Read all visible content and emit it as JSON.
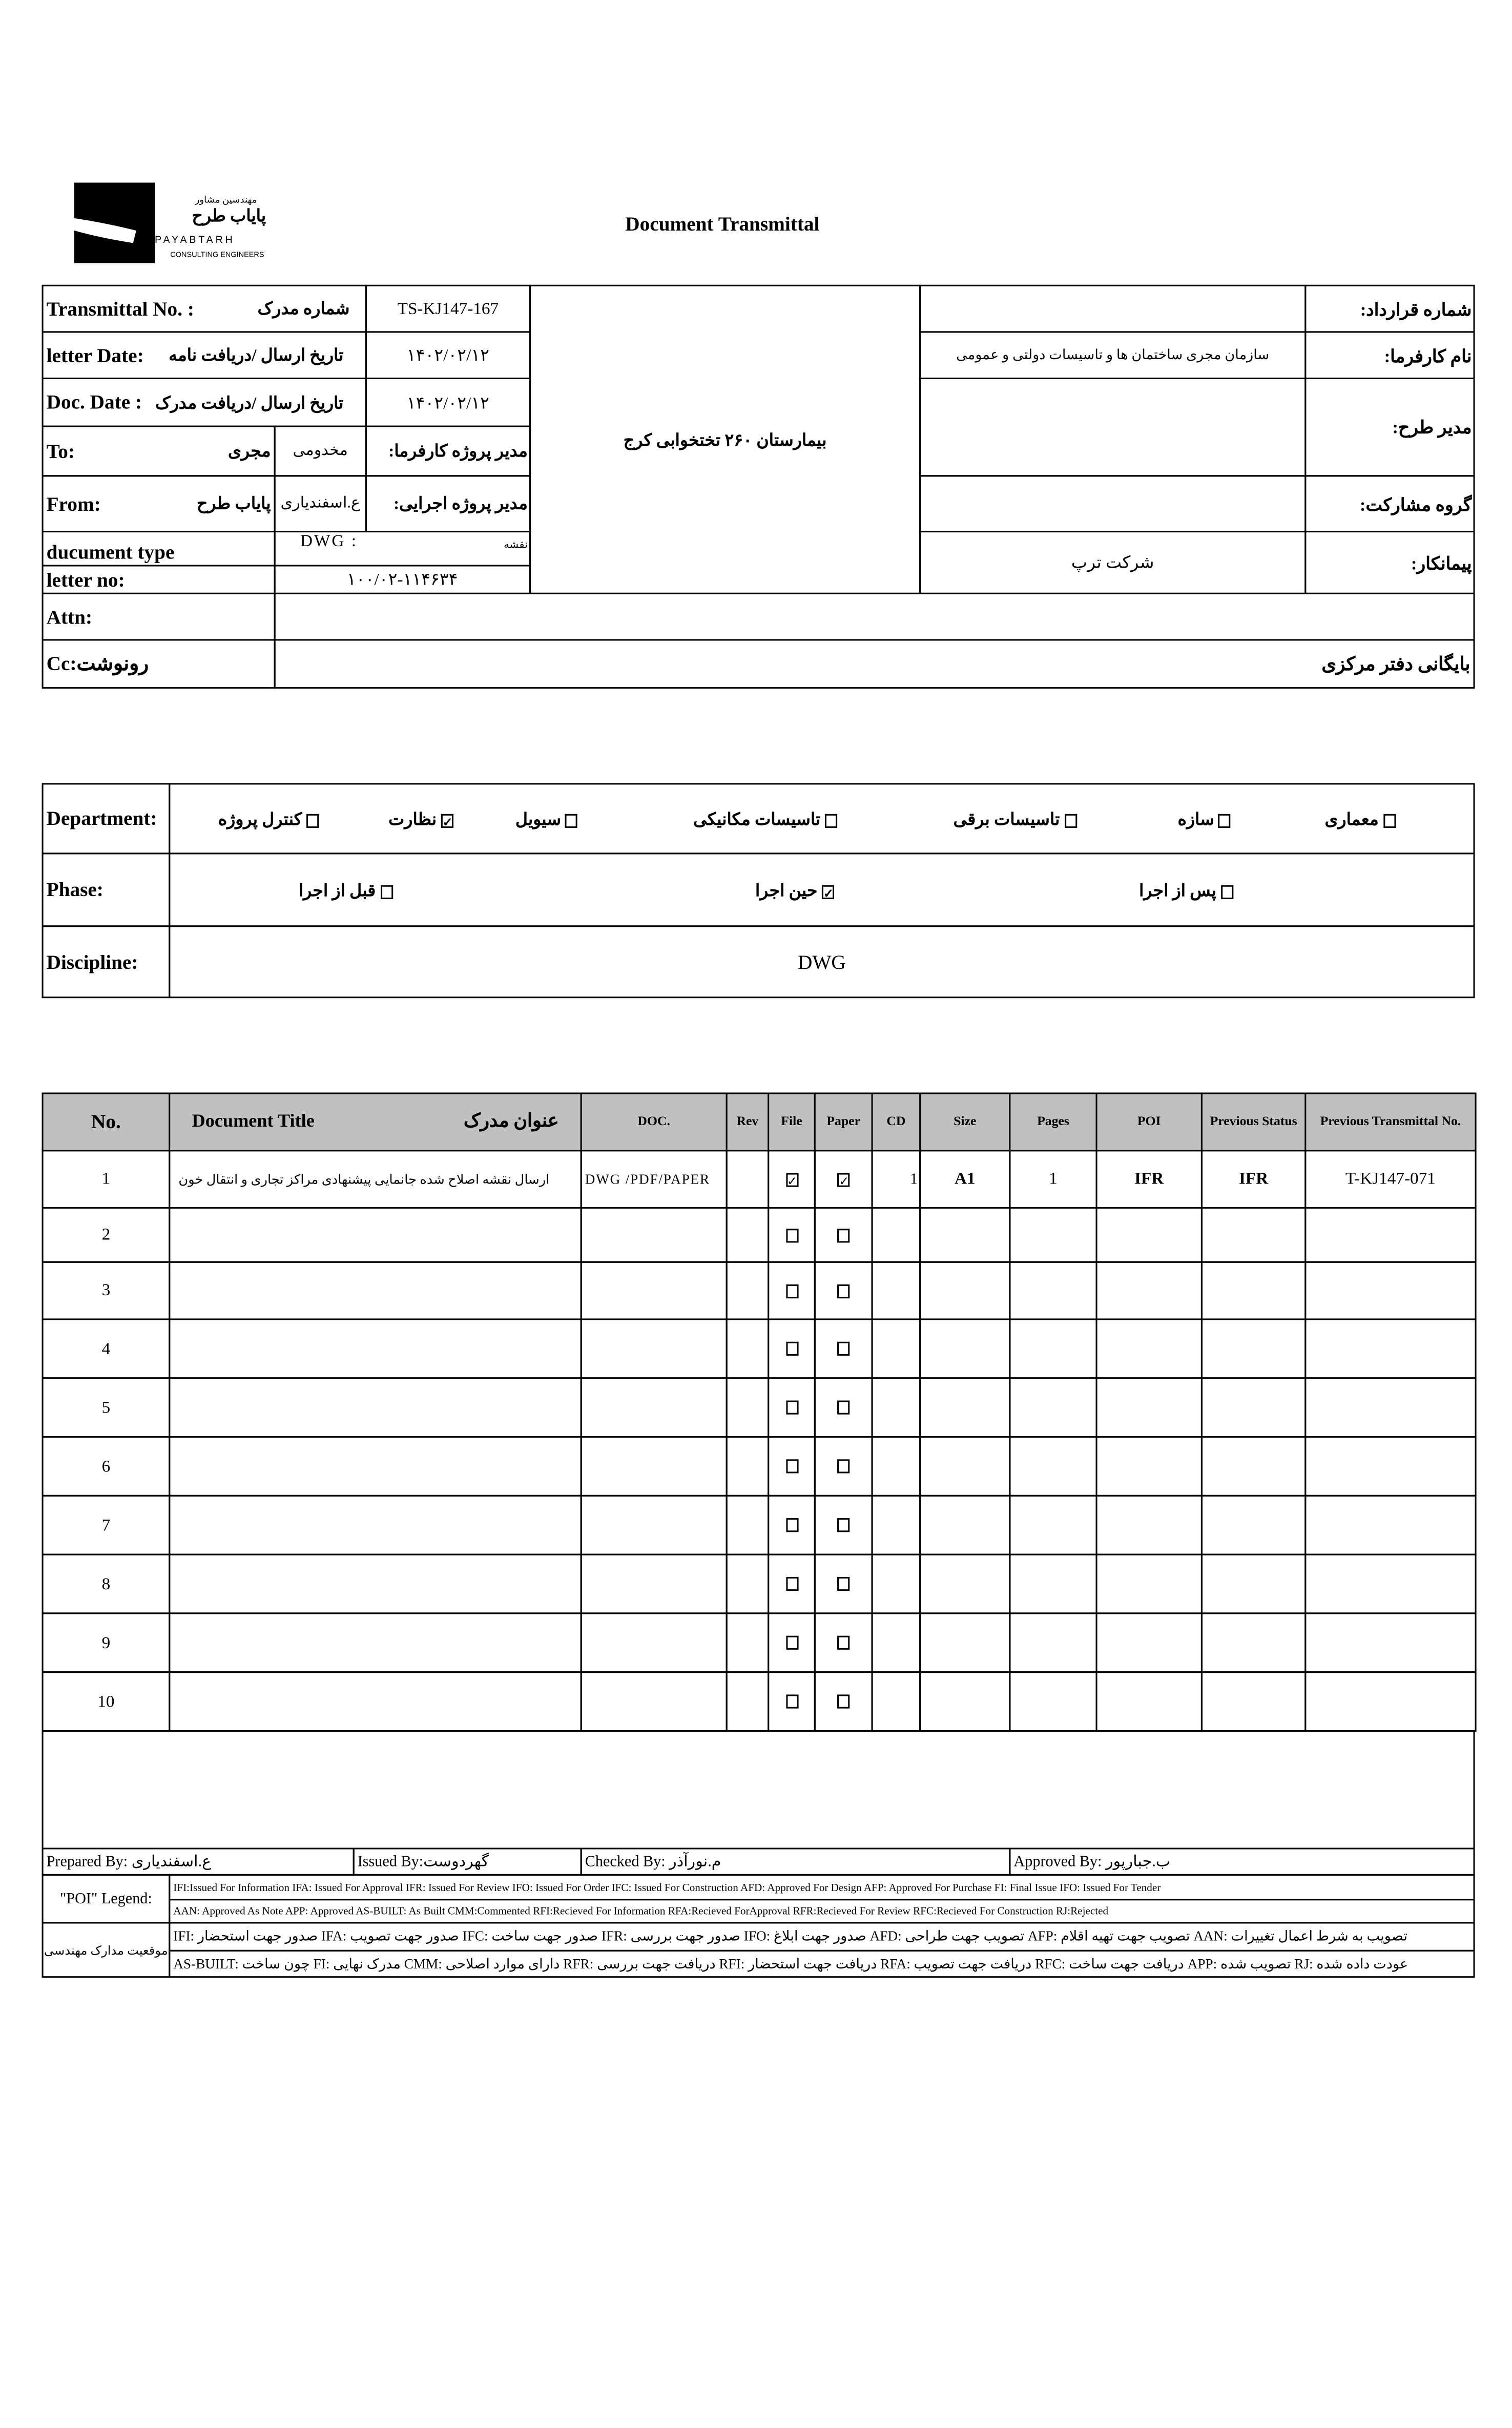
{
  "logo": {
    "company_fa_small": "مهندسین مشاور",
    "company_fa": "پایاب طرح",
    "company_en": "PAYABTARH",
    "tagline": "CONSULTING ENGINEERS"
  },
  "title": "Document Transmittal",
  "header": {
    "transmittal_label": "Transmittal No. :",
    "transmittal_label_fa": "شماره مدرک",
    "transmittal_no": "TS-KJ147-167",
    "letter_date_label": "letter Date:",
    "letter_date_label_fa": "تاریخ ارسال /دریافت نامه",
    "letter_date": "۱۴۰۲/۰۲/۱۲",
    "doc_date_label": "Doc. Date :",
    "doc_date_label_fa": "تاریخ ارسال /دریافت مدرک",
    "doc_date": "۱۴۰۲/۰۲/۱۲",
    "to_label": "To:",
    "to_value": "مجری",
    "to_name": "مخدومی",
    "to_role_fa": "مدیر پروژه کارفرما:",
    "from_label": "From:",
    "from_value": "پایاب طرح",
    "from_name": "ع.اسفندیاری",
    "from_role_fa": "مدیر پروژه اجرایی:",
    "doc_type_label": "ducument type",
    "doc_type_value": "DWG   :",
    "doc_type_fa": "نقشه",
    "letter_no_label": "letter no:",
    "letter_no": "۱۰۰/۰۲-۱۱۴۶۳۴",
    "project": "بیمارستان ۲۶۰ تختخوابی کرج",
    "contract_no_label": "شماره قرارداد:",
    "contract_no": "",
    "employer_label": "نام کارفرما:",
    "employer": "سازمان مجری ساختمان ها و تاسیسات دولتی و عمومی",
    "plan_manager_label": "مدیر طرح:",
    "plan_manager": "",
    "partner_label": "گروه مشارکت:",
    "partner": "",
    "contractor_label": "پیمانکار:",
    "contractor": "شرکت ترپ",
    "attn_label": "Attn:",
    "attn": "",
    "cc_label": "Cc:رونوشت",
    "cc": "بایگانی دفتر مرکزی"
  },
  "classification": {
    "department_label": "Department:",
    "departments": [
      {
        "label": "معماری",
        "checked": false
      },
      {
        "label": "سازه",
        "checked": false
      },
      {
        "label": "تاسیسات برقی",
        "checked": false
      },
      {
        "label": "تاسیسات مکانیکی",
        "checked": false
      },
      {
        "label": "سیویل",
        "checked": false
      },
      {
        "label": "نظارت",
        "checked": true
      },
      {
        "label": "کنترل پروژه",
        "checked": false
      }
    ],
    "phase_label": "Phase:",
    "phases": [
      {
        "label": "پس از اجرا",
        "checked": false
      },
      {
        "label": "حین اجرا",
        "checked": true
      },
      {
        "label": "قبل از اجرا",
        "checked": false
      }
    ],
    "discipline_label": "Discipline:",
    "discipline": "DWG"
  },
  "documents": {
    "columns": {
      "no": "No.",
      "title_en": "Document Title",
      "title_fa": "عنوان مدرک",
      "doc": "DOC.",
      "rev": "Rev",
      "file": "File",
      "paper": "Paper",
      "cd": "CD",
      "size": "Size",
      "pages": "Pages",
      "poi": "POI",
      "prev_status": "Previous Status",
      "prev_transmittal": "Previous Transmittal No."
    },
    "rows": [
      {
        "no": "1",
        "title": "ارسال نقشه اصلاح شده جانمایی پیشنهادی مراکز تجاری و انتقال خون",
        "doc": "DWG /PDF/PAPER",
        "rev": "",
        "file": true,
        "paper": true,
        "cd": "1",
        "size": "A1",
        "pages": "1",
        "poi": "IFR",
        "prev_status": "IFR",
        "prev_transmittal": "T-KJ147-071"
      },
      {
        "no": "2",
        "title": "",
        "doc": "",
        "rev": "",
        "file": false,
        "paper": false,
        "cd": "",
        "size": "",
        "pages": "",
        "poi": "",
        "prev_status": "",
        "prev_transmittal": ""
      },
      {
        "no": "3",
        "title": "",
        "doc": "",
        "rev": "",
        "file": false,
        "paper": false,
        "cd": "",
        "size": "",
        "pages": "",
        "poi": "",
        "prev_status": "",
        "prev_transmittal": ""
      },
      {
        "no": "4",
        "title": "",
        "doc": "",
        "rev": "",
        "file": false,
        "paper": false,
        "cd": "",
        "size": "",
        "pages": "",
        "poi": "",
        "prev_status": "",
        "prev_transmittal": ""
      },
      {
        "no": "5",
        "title": "",
        "doc": "",
        "rev": "",
        "file": false,
        "paper": false,
        "cd": "",
        "size": "",
        "pages": "",
        "poi": "",
        "prev_status": "",
        "prev_transmittal": ""
      },
      {
        "no": "6",
        "title": "",
        "doc": "",
        "rev": "",
        "file": false,
        "paper": false,
        "cd": "",
        "size": "",
        "pages": "",
        "poi": "",
        "prev_status": "",
        "prev_transmittal": ""
      },
      {
        "no": "7",
        "title": "",
        "doc": "",
        "rev": "",
        "file": false,
        "paper": false,
        "cd": "",
        "size": "",
        "pages": "",
        "poi": "",
        "prev_status": "",
        "prev_transmittal": ""
      },
      {
        "no": "8",
        "title": "",
        "doc": "",
        "rev": "",
        "file": false,
        "paper": false,
        "cd": "",
        "size": "",
        "pages": "",
        "poi": "",
        "prev_status": "",
        "prev_transmittal": ""
      },
      {
        "no": "9",
        "title": "",
        "doc": "",
        "rev": "",
        "file": false,
        "paper": false,
        "cd": "",
        "size": "",
        "pages": "",
        "poi": "",
        "prev_status": "",
        "prev_transmittal": ""
      },
      {
        "no": "10",
        "title": "",
        "doc": "",
        "rev": "",
        "file": false,
        "paper": false,
        "cd": "",
        "size": "",
        "pages": "",
        "poi": "",
        "prev_status": "",
        "prev_transmittal": ""
      }
    ]
  },
  "signatures": {
    "prepared": "Prepared By: ع.اسفندیاری",
    "issued": "Issued By:گهردوست",
    "checked": "Checked By: م.نورآذر",
    "approved": "Approved By: ب.جبارپور"
  },
  "legend": {
    "poi_label": "\"POI\" Legend:",
    "poi_line1": "IFI:Issued For Information  IFA: Issued For Approval  IFR: Issued For Review  IFO: Issued For Order  IFC: Issued For Construction AFD: Approved For Design AFP: Approved For Purchase  FI: Final Issue  IFO: Issued For Tender",
    "poi_line2": "AAN: Approved As Note  APP: Approved  AS-BUILT: As Built CMM:Commented  RFI:Recieved For Information   RFA:Recieved ForApproval   RFR:Recieved For Review  RFC:Recieved For Construction  RJ:Rejected",
    "status_label": "موقعیت مدارک مهندسی",
    "status_line1": "IFI: صدور جهت استحضار    IFA: صدور جهت تصویب    IFC: صدور جهت ساخت    IFR: صدور جهت بررسی    IFO: صدور جهت ابلاغ    AFD: تصویب جهت طراحی    AFP: تصویب جهت تهیه اقلام    AAN: تصویب به شرط اعمال تغییرات",
    "status_line2": "AS-BUILT: چون ساخت    FI: مدرک نهایی    CMM: دارای موارد اصلاحی    RFR: دریافت جهت بررسی    RFI: دریافت جهت استحضار    RFA: دریافت جهت تصویب    RFC: دریافت جهت ساخت    APP: تصویب شده    RJ: عودت داده شده"
  }
}
